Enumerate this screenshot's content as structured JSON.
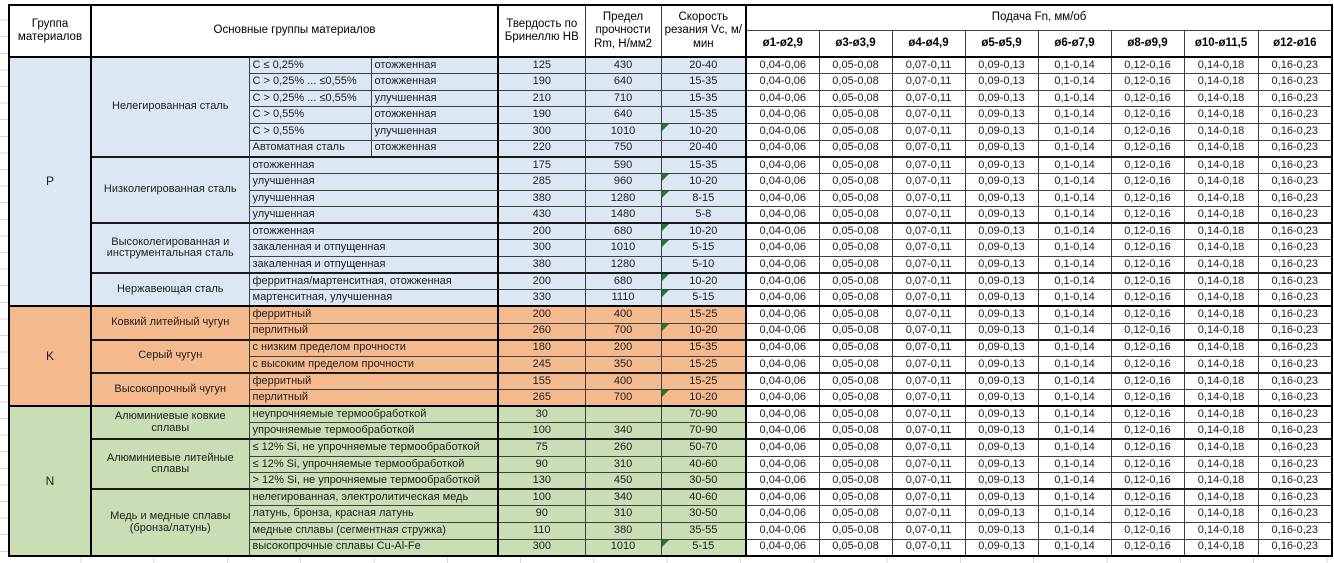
{
  "colors": {
    "group_p": "#dbe8f4",
    "group_k": "#f5b98e",
    "group_n": "#c9deb4",
    "flag": "#1e7b34"
  },
  "header": {
    "group_label": "Группа материалов",
    "materials_label": "Основные группы материалов",
    "hardness_label": "Твердость по Бринеллю HB",
    "strength_label": "Предел прочности Rm, Н/мм2",
    "speed_label": "Скорость резания Vc, м/мин",
    "feed_label": "Подача Fn, мм/об",
    "feed_cols": [
      "ø1-ø2,9",
      "ø3-ø3,9",
      "ø4-ø4,9",
      "ø5-ø5,9",
      "ø6-ø7,9",
      "ø8-ø9,9",
      "ø10-ø11,5",
      "ø12-ø16"
    ]
  },
  "feed_values": [
    "0,04-0,06",
    "0,05-0,08",
    "0,07-0,11",
    "0,09-0,13",
    "0,1-0,14",
    "0,12-0,16",
    "0,14-0,18",
    "0,16-0,23"
  ],
  "groups": [
    {
      "code": "P",
      "subgroups": [
        {
          "name": "Нелегированная сталь",
          "rows": [
            {
              "m1": "C ≤ 0,25%",
              "m2": "отожженная",
              "hb": "125",
              "rm": "430",
              "vc": "20-40",
              "flag": false
            },
            {
              "m1": "C > 0,25% ... ≤0,55%",
              "m2": "отожженная",
              "hb": "190",
              "rm": "640",
              "vc": "15-35",
              "flag": false
            },
            {
              "m1": "C > 0,25% ... ≤0,55%",
              "m2": "улучшенная",
              "hb": "210",
              "rm": "710",
              "vc": "15-35",
              "flag": false
            },
            {
              "m1": "C > 0,55%",
              "m2": "отожженная",
              "hb": "190",
              "rm": "640",
              "vc": "15-35",
              "flag": false
            },
            {
              "m1": "C > 0,55%",
              "m2": "улучшенная",
              "hb": "300",
              "rm": "1010",
              "vc": "10-20",
              "flag": true
            },
            {
              "m1": "Автоматная сталь",
              "m2": "отожженная",
              "hb": "220",
              "rm": "750",
              "vc": "20-40",
              "flag": false
            }
          ]
        },
        {
          "name": "Низколегированная сталь",
          "rows": [
            {
              "m1": "отожженная",
              "m2": null,
              "hb": "175",
              "rm": "590",
              "vc": "15-35",
              "flag": false
            },
            {
              "m1": "улучшенная",
              "m2": null,
              "hb": "285",
              "rm": "960",
              "vc": "10-20",
              "flag": true
            },
            {
              "m1": "улучшенная",
              "m2": null,
              "hb": "380",
              "rm": "1280",
              "vc": "8-15",
              "flag": true
            },
            {
              "m1": "улучшенная",
              "m2": null,
              "hb": "430",
              "rm": "1480",
              "vc": "5-8",
              "flag": false
            }
          ]
        },
        {
          "name": "Высоколегированная и инструментальная сталь",
          "rows": [
            {
              "m1": "отожженная",
              "m2": null,
              "hb": "200",
              "rm": "680",
              "vc": "10-20",
              "flag": true
            },
            {
              "m1": "закаленная и отпущенная",
              "m2": null,
              "hb": "300",
              "rm": "1010",
              "vc": "5-15",
              "flag": true
            },
            {
              "m1": "закаленная и отпущенная",
              "m2": null,
              "hb": "380",
              "rm": "1280",
              "vc": "5-10",
              "flag": false
            }
          ]
        },
        {
          "name": "Нержавеющая сталь",
          "rows": [
            {
              "m1": "ферритная/мартенситная, отожженная",
              "m2": null,
              "hb": "200",
              "rm": "680",
              "vc": "10-20",
              "flag": true
            },
            {
              "m1": "мартенситная, улучшенная",
              "m2": null,
              "hb": "330",
              "rm": "1110",
              "vc": "5-15",
              "flag": true
            }
          ]
        }
      ]
    },
    {
      "code": "K",
      "subgroups": [
        {
          "name": "Ковкий литейный чугун",
          "rows": [
            {
              "m1": "ферритный",
              "m2": null,
              "hb": "200",
              "rm": "400",
              "vc": "15-25",
              "flag": false
            },
            {
              "m1": "перлитный",
              "m2": null,
              "hb": "260",
              "rm": "700",
              "vc": "10-20",
              "flag": true
            }
          ]
        },
        {
          "name": "Серый чугун",
          "rows": [
            {
              "m1": "с низким пределом прочности",
              "m2": null,
              "hb": "180",
              "rm": "200",
              "vc": "15-35",
              "flag": false
            },
            {
              "m1": "с высоким пределом прочности",
              "m2": null,
              "hb": "245",
              "rm": "350",
              "vc": "15-25",
              "flag": false
            }
          ]
        },
        {
          "name": "Высокопрочный чугун",
          "rows": [
            {
              "m1": "ферритный",
              "m2": null,
              "hb": "155",
              "rm": "400",
              "vc": "15-25",
              "flag": false
            },
            {
              "m1": "перлитный",
              "m2": null,
              "hb": "265",
              "rm": "700",
              "vc": "10-20",
              "flag": true
            }
          ]
        }
      ]
    },
    {
      "code": "N",
      "subgroups": [
        {
          "name": "Алюминиевые ковкие сплавы",
          "rows": [
            {
              "m1": "неупрочняемые термообработкой",
              "m2": null,
              "hb": "30",
              "rm": "",
              "vc": "70-90",
              "flag": false
            },
            {
              "m1": "упрочняемые термообработкой",
              "m2": null,
              "hb": "100",
              "rm": "340",
              "vc": "70-90",
              "flag": false
            }
          ]
        },
        {
          "name": "Алюминиевые литейные сплавы",
          "rows": [
            {
              "m1": "≤ 12% Si, не упрочняемые термообработкой",
              "m2": null,
              "hb": "75",
              "rm": "260",
              "vc": "50-70",
              "flag": false
            },
            {
              "m1": "≤ 12% Si, упрочняемые термообработкой",
              "m2": null,
              "hb": "90",
              "rm": "310",
              "vc": "40-60",
              "flag": false
            },
            {
              "m1": "> 12% Si, не упрочняемые термообработкой",
              "m2": null,
              "hb": "130",
              "rm": "450",
              "vc": "30-50",
              "flag": false
            }
          ]
        },
        {
          "name": "Медь и медные сплавы (бронза/латунь)",
          "rows": [
            {
              "m1": "нелегированная, электролитическая медь",
              "m2": null,
              "hb": "100",
              "rm": "340",
              "vc": "40-60",
              "flag": false
            },
            {
              "m1": "латунь, бронза, красная латунь",
              "m2": null,
              "hb": "90",
              "rm": "310",
              "vc": "30-50",
              "flag": false
            },
            {
              "m1": "медные сплавы (сегментная стружка)",
              "m2": null,
              "hb": "110",
              "rm": "380",
              "vc": "35-55",
              "flag": false
            },
            {
              "m1": "высокопрочные сплавы Cu-Al-Fe",
              "m2": null,
              "hb": "300",
              "rm": "1010",
              "vc": "5-15",
              "flag": true
            }
          ]
        }
      ]
    }
  ]
}
